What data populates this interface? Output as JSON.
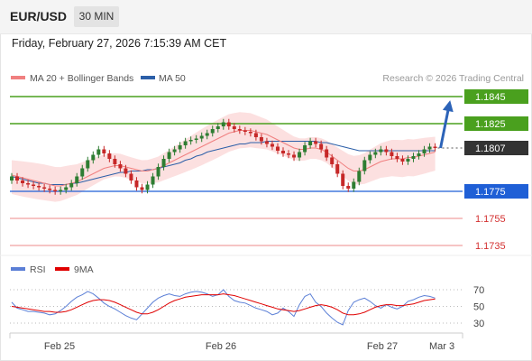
{
  "header": {
    "symbol": "EUR/USD",
    "timeframe": "30 MIN"
  },
  "datetime": "Friday, February 27, 2026 7:15:39 AM CET",
  "legend": {
    "ma_bb": {
      "label": "MA 20 + Bollinger Bands",
      "color": "#f08080"
    },
    "ma50": {
      "label": "MA 50",
      "color": "#2c5fa8"
    }
  },
  "copyright": "Research © 2026 Trading Central",
  "rsi_legend": {
    "rsi": {
      "label": "RSI",
      "color": "#5b7fd6"
    },
    "ma9": {
      "label": "9MA",
      "color": "#e00000"
    }
  },
  "colors": {
    "up": "#2e7d32",
    "down": "#c62828",
    "resistance": "#4aa01e",
    "support": "#1f5fd6",
    "minor": "#f0a0a0",
    "bands": "#fbdada"
  },
  "chart_data": {
    "type": "candlestick",
    "price_ylim": [
      1.1725,
      1.1855
    ],
    "x_ticks": [
      "Feb 25",
      "Feb 26",
      "Feb 27",
      "Mar 3"
    ],
    "current_price": "1.1807",
    "levels": [
      {
        "value": "1.1845",
        "kind": "resistance"
      },
      {
        "value": "1.1825",
        "kind": "resistance"
      },
      {
        "value": "1.1775",
        "kind": "support"
      },
      {
        "value": "1.1755",
        "kind": "minor"
      },
      {
        "value": "1.1735",
        "kind": "minor"
      }
    ],
    "forecast_target": 1.1845,
    "close": [
      1.1786,
      1.1783,
      1.1781,
      1.178,
      1.1779,
      1.1778,
      1.1777,
      1.1776,
      1.1775,
      1.1776,
      1.1778,
      1.1781,
      1.1786,
      1.1792,
      1.1798,
      1.1802,
      1.1806,
      1.1803,
      1.1799,
      1.1795,
      1.1792,
      1.1788,
      1.1783,
      1.1778,
      1.1776,
      1.178,
      1.1786,
      1.1793,
      1.1799,
      1.1804,
      1.1806,
      1.1809,
      1.1812,
      1.1813,
      1.1814,
      1.1816,
      1.1818,
      1.1821,
      1.1823,
      1.1826,
      1.1823,
      1.1821,
      1.182,
      1.1819,
      1.1818,
      1.1815,
      1.1812,
      1.181,
      1.1808,
      1.1805,
      1.1803,
      1.1802,
      1.18,
      1.1804,
      1.1809,
      1.1812,
      1.181,
      1.1806,
      1.18,
      1.1795,
      1.1788,
      1.1779,
      1.1777,
      1.1782,
      1.179,
      1.1798,
      1.1802,
      1.1804,
      1.1806,
      1.1804,
      1.1801,
      1.1799,
      1.1797,
      1.1799,
      1.1801,
      1.1803,
      1.1806,
      1.1808,
      1.1807
    ],
    "ma20": [
      1.1787,
      1.1786,
      1.1785,
      1.1784,
      1.1783,
      1.1782,
      1.1781,
      1.178,
      1.1779,
      1.1779,
      1.178,
      1.1781,
      1.1782,
      1.1784,
      1.1786,
      1.1788,
      1.179,
      1.1792,
      1.1793,
      1.1794,
      1.1794,
      1.1793,
      1.1792,
      1.1791,
      1.179,
      1.179,
      1.1791,
      1.1792,
      1.1794,
      1.1796,
      1.1798,
      1.18,
      1.1802,
      1.1804,
      1.1806,
      1.1808,
      1.181,
      1.1812,
      1.1814,
      1.1816,
      1.1818,
      1.1819,
      1.182,
      1.182,
      1.182,
      1.1819,
      1.1818,
      1.1817,
      1.1815,
      1.1813,
      1.1811,
      1.1809,
      1.1807,
      1.1806,
      1.1806,
      1.1807,
      1.1807,
      1.1806,
      1.1804,
      1.1801,
      1.1798,
      1.1795,
      1.1792,
      1.179,
      1.179,
      1.1791,
      1.1793,
      1.1795,
      1.1797,
      1.1798,
      1.1799,
      1.1799,
      1.1799,
      1.18,
      1.18,
      1.1801,
      1.1802,
      1.1803,
      1.1804
    ],
    "ma50": [
      1.1786,
      1.1785,
      1.1784,
      1.1783,
      1.1782,
      1.1781,
      1.1781,
      1.178,
      1.178,
      1.178,
      1.178,
      1.1781,
      1.1781,
      1.1782,
      1.1783,
      1.1784,
      1.1785,
      1.1786,
      1.1787,
      1.1788,
      1.1789,
      1.1789,
      1.179,
      1.179,
      1.179,
      1.1791,
      1.1791,
      1.1792,
      1.1793,
      1.1794,
      1.1795,
      1.1796,
      1.1798,
      1.1799,
      1.1801,
      1.1802,
      1.1804,
      1.1805,
      1.1806,
      1.1807,
      1.1808,
      1.1809,
      1.181,
      1.181,
      1.1811,
      1.1811,
      1.1811,
      1.1812,
      1.1812,
      1.1812,
      1.1812,
      1.1812,
      1.1812,
      1.1812,
      1.1812,
      1.1812,
      1.1812,
      1.1811,
      1.1811,
      1.181,
      1.1809,
      1.1808,
      1.1807,
      1.1806,
      1.1805,
      1.1805,
      1.1805,
      1.1805,
      1.1805,
      1.1805,
      1.1805,
      1.1805,
      1.1805,
      1.1805,
      1.1805,
      1.1805,
      1.1805,
      1.1805,
      1.1805
    ],
    "rsi_ylim": [
      20,
      80
    ],
    "rsi_levels": [
      "70",
      "50",
      "30"
    ],
    "rsi": [
      55,
      48,
      46,
      44,
      44,
      43,
      42,
      40,
      41,
      45,
      50,
      56,
      61,
      64,
      68,
      65,
      60,
      54,
      50,
      47,
      43,
      39,
      36,
      34,
      41,
      48,
      55,
      60,
      63,
      65,
      63,
      62,
      65,
      67,
      68,
      67,
      65,
      62,
      64,
      70,
      62,
      57,
      55,
      54,
      51,
      48,
      46,
      44,
      40,
      42,
      48,
      44,
      38,
      52,
      62,
      65,
      55,
      50,
      42,
      36,
      31,
      28,
      45,
      55,
      58,
      60,
      56,
      51,
      48,
      52,
      49,
      47,
      50,
      56,
      58,
      61,
      63,
      62,
      60
    ],
    "rsi_ma": [
      50,
      49,
      48,
      47,
      46,
      45,
      44,
      44,
      43,
      43,
      44,
      46,
      49,
      52,
      55,
      57,
      58,
      58,
      57,
      55,
      52,
      49,
      46,
      43,
      41,
      41,
      43,
      46,
      50,
      54,
      57,
      59,
      61,
      62,
      63,
      64,
      64,
      64,
      64,
      65,
      64,
      63,
      61,
      59,
      57,
      55,
      53,
      51,
      49,
      47,
      46,
      45,
      44,
      45,
      47,
      49,
      51,
      52,
      51,
      49,
      46,
      42,
      40,
      40,
      41,
      43,
      46,
      49,
      51,
      52,
      52,
      51,
      51,
      52,
      53,
      55,
      57,
      58,
      59
    ]
  }
}
